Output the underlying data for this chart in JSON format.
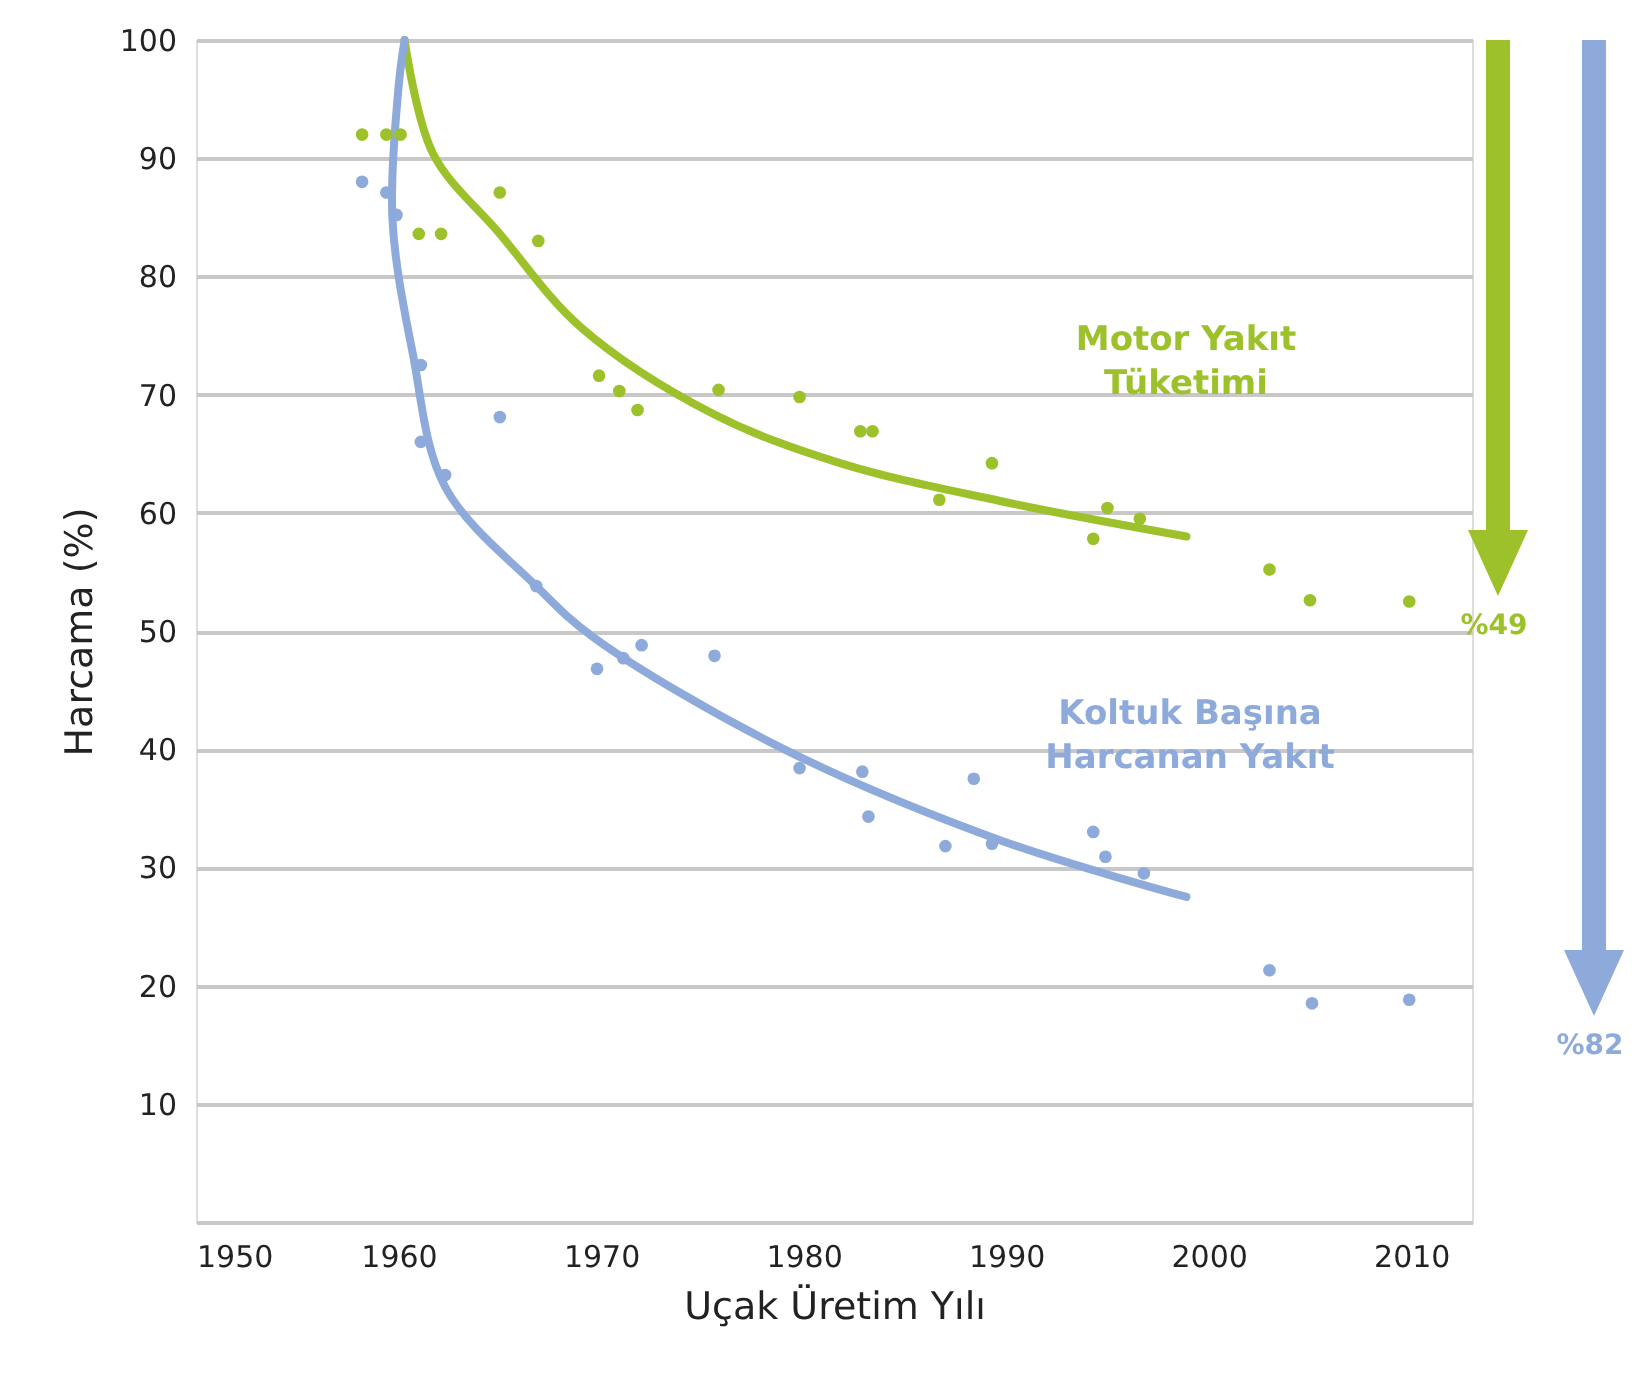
{
  "chart_data": {
    "type": "scatter",
    "xlabel": "Uçak Üretim Yılı",
    "ylabel": "Harcama (%)",
    "xlim": [
      1950,
      2013
    ],
    "xticks": [
      1950,
      1960,
      1970,
      1980,
      1990,
      2000,
      2010
    ],
    "ylim": [
      0,
      100
    ],
    "yticks": [
      {
        "value": 0,
        "label": null
      },
      10,
      20,
      30,
      40,
      50,
      60,
      70,
      80,
      90,
      100
    ],
    "grid": "y",
    "marker": "circle",
    "series": [
      {
        "name": "Motor Yakıt Tüketimi",
        "color": "#9dc12b",
        "x": [
          1958.2,
          1959.4,
          1960.1,
          1961.0,
          1962.1,
          1965.0,
          1966.9,
          1969.9,
          1970.9,
          1971.8,
          1975.8,
          1979.8,
          1982.8,
          1983.4,
          1986.7,
          1989.3,
          1994.3,
          1995.0,
          1996.6,
          2003.0,
          2005.0,
          2009.9
        ],
        "values": [
          92,
          92,
          92,
          83.6,
          83.6,
          87.1,
          83.0,
          71.6,
          70.3,
          68.7,
          70.4,
          69.8,
          66.9,
          66.9,
          61.1,
          64.2,
          57.8,
          60.4,
          59.5,
          55.2,
          52.6,
          52.5
        ]
      },
      {
        "type": "line",
        "marker": "none",
        "line_style": "solid",
        "color": "#9dc12b",
        "x": [
          1960.3,
          1961.7,
          1965.0,
          1969.0,
          1975.5,
          1981.8,
          1989.7,
          1998.9
        ],
        "values": [
          100,
          90.4,
          83.6,
          75.7,
          68.4,
          64.2,
          61.0,
          58.0
        ]
      },
      {
        "name": "Koltuk Başına Harcanan Yakıt",
        "color": "#8eaadb",
        "x": [
          1958.2,
          1959.4,
          1959.9,
          1961.1,
          1961.1,
          1962.3,
          1965.0,
          1966.8,
          1969.8,
          1971.1,
          1972.0,
          1975.6,
          1979.8,
          1982.9,
          1983.2,
          1987.0,
          1988.4,
          1989.3,
          1994.3,
          1994.9,
          1996.8,
          2003.0,
          2005.1,
          2009.9
        ],
        "values": [
          88.0,
          87.1,
          85.2,
          72.5,
          66.0,
          63.2,
          68.1,
          53.8,
          46.8,
          47.7,
          48.8,
          47.9,
          38.4,
          38.1,
          34.3,
          31.8,
          37.5,
          32.0,
          33.0,
          30.9,
          29.5,
          21.3,
          18.5,
          18.8
        ]
      },
      {
        "type": "line",
        "marker": "none",
        "line_style": "solid",
        "color": "#8eaadb",
        "x": [
          1960.3,
          1960.0,
          1959.7,
          1960.7,
          1962.3,
          1966.8,
          1969.6,
          1978.8,
          1989.7,
          1998.9
        ],
        "values": [
          100,
          96,
          84.8,
          73.5,
          62.2,
          53.8,
          49.5,
          40.2,
          32.3,
          27.5
        ]
      }
    ],
    "annotations": [
      "%49",
      "%82"
    ]
  }
}
